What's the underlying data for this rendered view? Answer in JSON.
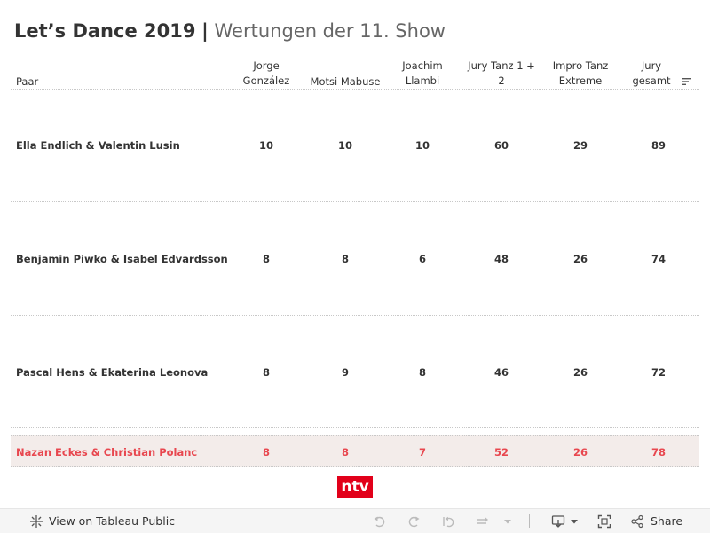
{
  "title": {
    "main": "Let’s Dance 2019",
    "separator": "|",
    "subtitle": "Wertungen der 11. Show"
  },
  "columns": {
    "pair": "Paar",
    "jorge_line1": "Jorge",
    "jorge_line2": "González",
    "motsi": "Motsi Mabuse",
    "joachim_line1": "Joachim",
    "joachim_line2": "Llambi",
    "jury12_line1": "Jury Tanz 1 +",
    "jury12_line2": "2",
    "impro_line1": "Impro Tanz",
    "impro_line2": "Extreme",
    "total_line1": "Jury",
    "total_line2": "gesamt"
  },
  "rows": [
    {
      "name": "Ella Endlich & Valentin Lusin",
      "jorge": "10",
      "motsi": "10",
      "joachim": "10",
      "jury12": "60",
      "impro": "29",
      "total": "89"
    },
    {
      "name": "Benjamin Piwko & Isabel Edvardsson",
      "jorge": "8",
      "motsi": "8",
      "joachim": "6",
      "jury12": "48",
      "impro": "26",
      "total": "74"
    },
    {
      "name": "Pascal Hens & Ekaterina Leonova",
      "jorge": "8",
      "motsi": "9",
      "joachim": "8",
      "jury12": "46",
      "impro": "26",
      "total": "72"
    },
    {
      "name": "Nazan Eckes & Christian Polanc",
      "jorge": "8",
      "motsi": "8",
      "joachim": "7",
      "jury12": "52",
      "impro": "26",
      "total": "78"
    }
  ],
  "logo": "ntv",
  "toolbar": {
    "view_label": "View on Tableau Public",
    "share_label": "Share"
  },
  "colors": {
    "highlight_text": "#e8474f",
    "highlight_bg": "#f3ecea",
    "logo_bg": "#e2001a"
  }
}
